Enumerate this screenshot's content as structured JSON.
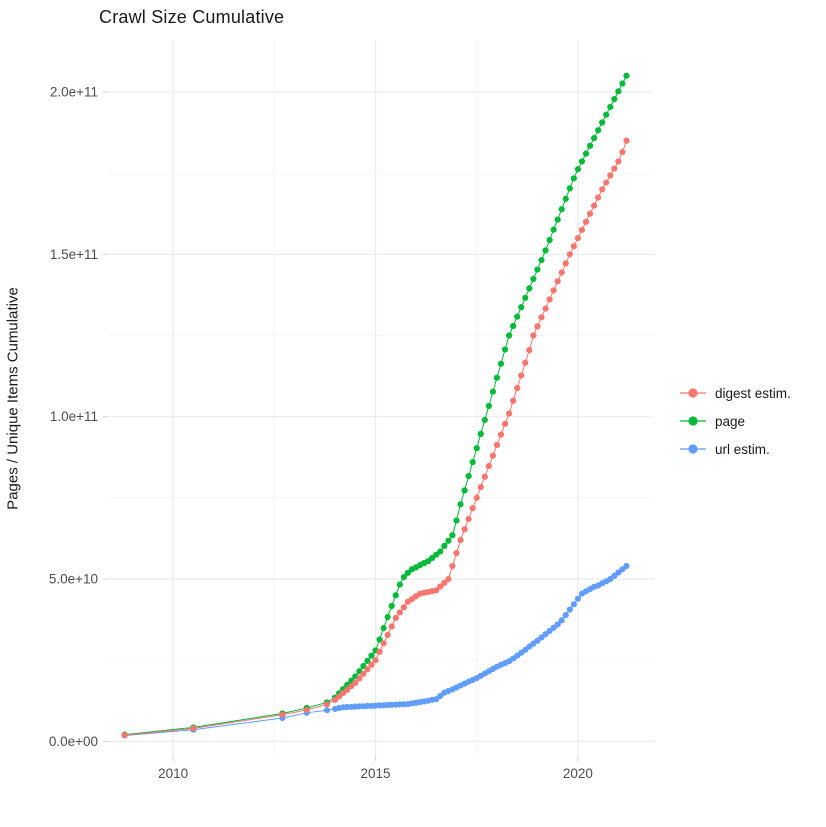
{
  "chart_data": {
    "type": "scatter-line",
    "title": "Crawl Size Cumulative",
    "xlabel": "",
    "ylabel": "Pages / Unique Items Cumulative",
    "legend_position": "right",
    "grid": true,
    "y_unit_multiplier": "1e9",
    "x_axis": {
      "domain": [
        2008.39,
        2021.88
      ],
      "ticks": [
        {
          "value": 2010,
          "label": "2010"
        },
        {
          "value": 2015,
          "label": "2015"
        },
        {
          "value": 2020,
          "label": "2020"
        }
      ],
      "minor_ticks": [
        2012.5,
        2017.5
      ]
    },
    "y_axis": {
      "domain": [
        -4.5,
        216
      ],
      "ticks": [
        {
          "value": 0,
          "label": "0.0e+00"
        },
        {
          "value": 50,
          "label": "5.0e+10"
        },
        {
          "value": 100,
          "label": "1.0e+11"
        },
        {
          "value": 150,
          "label": "1.5e+11"
        },
        {
          "value": 200,
          "label": "2.0e+11"
        }
      ],
      "minor_ticks": [
        25,
        75,
        125,
        175
      ]
    },
    "x": [
      2008.8,
      2010.5,
      2012.7,
      2013.3,
      2013.8,
      2014.0,
      2014.1,
      2014.2,
      2014.3,
      2014.4,
      2014.5,
      2014.6,
      2014.7,
      2014.8,
      2014.9,
      2015.0,
      2015.1,
      2015.2,
      2015.3,
      2015.4,
      2015.5,
      2015.6,
      2015.7,
      2015.8,
      2015.9,
      2016.0,
      2016.1,
      2016.2,
      2016.3,
      2016.4,
      2016.5,
      2016.6,
      2016.7,
      2016.8,
      2016.9,
      2017.0,
      2017.1,
      2017.2,
      2017.3,
      2017.4,
      2017.5,
      2017.6,
      2017.7,
      2017.8,
      2017.9,
      2018.0,
      2018.1,
      2018.2,
      2018.3,
      2018.4,
      2018.5,
      2018.6,
      2018.7,
      2018.8,
      2018.9,
      2019.0,
      2019.1,
      2019.2,
      2019.3,
      2019.4,
      2019.5,
      2019.6,
      2019.7,
      2019.8,
      2019.9,
      2020.0,
      2020.1,
      2020.2,
      2020.3,
      2020.4,
      2020.5,
      2020.6,
      2020.7,
      2020.8,
      2020.9,
      2021.0,
      2021.1,
      2021.2
    ],
    "series": [
      {
        "name": "digest estim.",
        "color": "#F8766D",
        "y": [
          1.9,
          4.0,
          8.2,
          9.7,
          11.4,
          12.8,
          13.8,
          14.9,
          15.9,
          17.0,
          18.0,
          19.4,
          20.8,
          22.2,
          23.6,
          25.0,
          27.6,
          30.2,
          32.8,
          35.4,
          38.0,
          39.7,
          41.3,
          43.0,
          43.8,
          44.7,
          45.5,
          45.8,
          46.0,
          46.3,
          46.5,
          47.7,
          48.8,
          50.0,
          54.0,
          58.0,
          62.0,
          65.3,
          68.5,
          71.8,
          75.0,
          78.3,
          81.5,
          84.8,
          88.0,
          91.3,
          94.5,
          97.8,
          101.0,
          104.9,
          108.8,
          112.7,
          116.6,
          120.5,
          125.0,
          127.8,
          130.6,
          133.3,
          136.1,
          138.9,
          141.7,
          144.4,
          147.2,
          150.0,
          152.5,
          155.0,
          157.5,
          160.0,
          162.5,
          165.0,
          167.5,
          170.0,
          172.1,
          174.3,
          176.4,
          178.6,
          181.5,
          185.0
        ]
      },
      {
        "name": "page",
        "color": "#00BA38",
        "y": [
          2.1,
          4.3,
          8.6,
          10.3,
          12.0,
          13.5,
          14.8,
          16.1,
          17.4,
          18.7,
          20.0,
          21.6,
          23.2,
          24.8,
          26.4,
          28.0,
          31.4,
          34.9,
          38.3,
          41.7,
          45.0,
          48.3,
          50.6,
          51.9,
          53.0,
          53.6,
          54.3,
          54.9,
          55.5,
          56.5,
          57.5,
          58.5,
          60.2,
          61.8,
          63.5,
          68.0,
          73.0,
          77.3,
          81.7,
          86.0,
          90.3,
          94.7,
          99.0,
          103.3,
          107.7,
          112.0,
          116.3,
          120.7,
          125.0,
          127.9,
          130.8,
          133.7,
          136.6,
          139.5,
          142.4,
          145.3,
          148.2,
          151.2,
          154.4,
          157.6,
          160.7,
          163.9,
          167.1,
          170.3,
          173.4,
          176.2,
          178.6,
          181.0,
          183.4,
          185.8,
          188.2,
          190.6,
          193.0,
          195.4,
          197.8,
          200.2,
          202.6,
          205.0
        ]
      },
      {
        "name": "url estim.",
        "color": "#619CFF",
        "y": [
          1.8,
          3.6,
          7.2,
          8.8,
          9.6,
          10.0,
          10.3,
          10.5,
          10.6,
          10.6,
          10.7,
          10.8,
          10.8,
          10.9,
          10.9,
          11.0,
          11.1,
          11.1,
          11.2,
          11.3,
          11.3,
          11.4,
          11.4,
          11.5,
          11.7,
          11.9,
          12.1,
          12.3,
          12.5,
          12.8,
          13.0,
          14.0,
          15.0,
          15.5,
          16.0,
          16.6,
          17.2,
          17.8,
          18.4,
          18.9,
          19.5,
          20.2,
          20.9,
          21.6,
          22.3,
          23.0,
          23.6,
          24.1,
          24.7,
          25.5,
          26.4,
          27.3,
          28.2,
          29.2,
          30.1,
          31.0,
          32.0,
          33.0,
          34.0,
          35.0,
          36.0,
          37.3,
          38.9,
          40.6,
          42.2,
          43.9,
          45.5,
          46.2,
          46.9,
          47.6,
          48.0,
          48.7,
          49.3,
          50.0,
          51.0,
          52.0,
          53.0,
          54.0
        ]
      }
    ],
    "colors": {
      "grid_major": "#EBEBEB",
      "grid_minor": "#F5F5F5",
      "axis_tick": "#D9D9D9",
      "tick_text": "#4D4D4D",
      "title_text": "#1A1A1A"
    }
  }
}
